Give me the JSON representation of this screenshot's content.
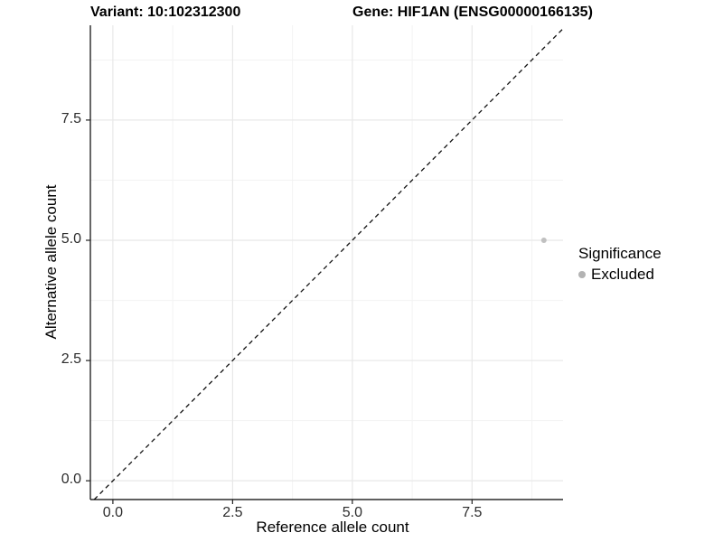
{
  "titles": {
    "left": "Variant: 10:102312300",
    "right": "Gene: HIF1AN (ENSG00000166135)"
  },
  "axes": {
    "x": {
      "label": "Reference allele count",
      "tick_labels": [
        "0.0",
        "2.5",
        "5.0",
        "7.5"
      ]
    },
    "y": {
      "label": "Alternative allele count",
      "tick_labels": [
        "0.0",
        "2.5",
        "5.0",
        "7.5"
      ]
    }
  },
  "legend": {
    "title": "Significance",
    "items": [
      {
        "label": "Excluded",
        "color": "#b3b3b3"
      }
    ]
  },
  "colors": {
    "background": "#ffffff",
    "grid_major": "#e8e8e8",
    "grid_minor": "#f3f3f3",
    "axis_line": "#000000",
    "tick_mark": "#222222",
    "tick_text": "#2d2d2d",
    "reference_line": "#111111",
    "point": "#c0c0c0"
  },
  "chart_data": {
    "type": "scatter",
    "title": "Variant: 10:102312300 — Gene: HIF1AN (ENSG00000166135)",
    "xlabel": "Reference allele count",
    "ylabel": "Alternative allele count",
    "x_ticks": [
      0,
      2.5,
      5,
      7.5
    ],
    "y_ticks": [
      0,
      2.5,
      5,
      7.5
    ],
    "x_minor_ticks": [
      1.25,
      3.75,
      6.25,
      8.75
    ],
    "y_minor_ticks": [
      1.25,
      3.75,
      6.25,
      8.75
    ],
    "xlim": [
      -0.47,
      9.4
    ],
    "ylim": [
      -0.39,
      9.47
    ],
    "grid": true,
    "legend_position": "right",
    "series": [
      {
        "name": "Excluded",
        "color": "#c0c0c0",
        "points": [
          {
            "x": 9,
            "y": 5
          }
        ]
      }
    ],
    "reference_line": {
      "slope": 1,
      "intercept": 0,
      "linetype": "dashed"
    }
  }
}
